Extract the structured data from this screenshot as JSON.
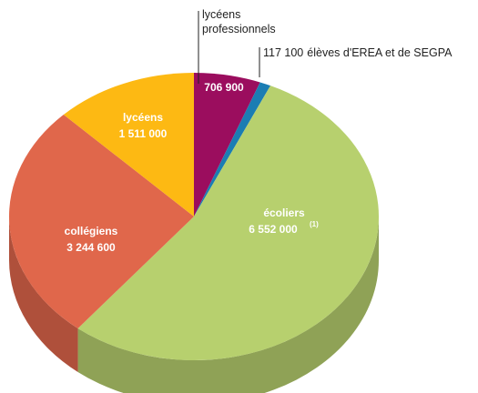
{
  "chart_data": {
    "type": "pie",
    "categories": [
      "lycéens professionnels",
      "élèves d'EREA et de SEGPA",
      "écoliers",
      "collégiens",
      "lycéens"
    ],
    "values": [
      706900,
      117100,
      6552000,
      3244600,
      1511000
    ],
    "value_labels": [
      "706 900",
      "117 100",
      "6 552 000",
      "3 244 600",
      "1 511 000"
    ],
    "colors": [
      "#9b0d5e",
      "#1b7db3",
      "#b7d06e",
      "#e0674b",
      "#fdb913"
    ],
    "note": "(1)"
  }
}
